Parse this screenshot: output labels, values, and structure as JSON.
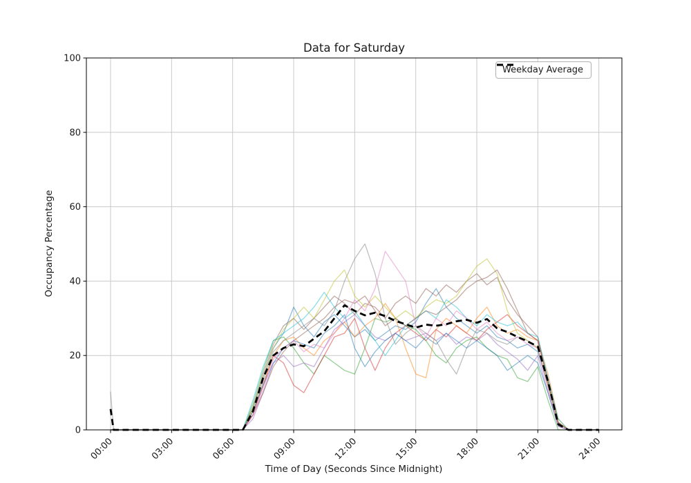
{
  "chart_data": {
    "type": "line",
    "title": "Data for Saturday",
    "xlabel": "Time of Day (Seconds Since Midnight)",
    "ylabel": "Occupancy Percentage",
    "legend_label": "Weekday Average",
    "legend_position": "upper right",
    "grid": true,
    "ylim": [
      0,
      100
    ],
    "y_ticks": [
      0,
      20,
      40,
      60,
      80,
      100
    ],
    "x_tick_hours": [
      0,
      3,
      6,
      9,
      12,
      15,
      18,
      21,
      24
    ],
    "x_tick_labels": [
      "00:00",
      "03:00",
      "06:00",
      "09:00",
      "12:00",
      "15:00",
      "18:00",
      "21:00",
      "24:00"
    ],
    "x_hours": [
      0,
      0.15,
      0.5,
      1,
      1.5,
      2,
      2.5,
      3,
      3.5,
      4,
      4.5,
      5,
      5.5,
      6,
      6.5,
      7,
      7.5,
      8,
      8.5,
      9,
      9.5,
      10,
      10.5,
      11,
      11.5,
      12,
      12.5,
      13,
      13.5,
      14,
      14.5,
      15,
      15.5,
      16,
      16.5,
      17,
      17.5,
      18,
      18.5,
      19,
      19.5,
      20,
      20.5,
      21,
      21.5,
      22,
      22.5,
      23,
      23.5,
      24
    ],
    "average_series": {
      "name": "Weekday Average",
      "color": "#000000",
      "dashed": true,
      "values": [
        5.6,
        0,
        0,
        0,
        0,
        0,
        0,
        0,
        0,
        0,
        0,
        0,
        0,
        0,
        0,
        5,
        14,
        20,
        22,
        23,
        22.5,
        24.5,
        26.5,
        30,
        33.5,
        32,
        30.8,
        31.5,
        30.6,
        29.3,
        28.4,
        27.5,
        28.3,
        28,
        28.4,
        29.2,
        29.6,
        28.8,
        29.8,
        27.3,
        26.3,
        25,
        23.8,
        22.4,
        13,
        1.5,
        0,
        0,
        0,
        0
      ]
    },
    "saturday_series": [
      {
        "color": "#1f77b4",
        "opacity": 0.5,
        "values": [
          0,
          0,
          0,
          0,
          0,
          0,
          0,
          0,
          0,
          0,
          0,
          0,
          0,
          0,
          0,
          6,
          14,
          22,
          26,
          33,
          28,
          25,
          29,
          31,
          28,
          25,
          27,
          24,
          26,
          28,
          27,
          29,
          34,
          38,
          33,
          30,
          28,
          26,
          28,
          25,
          24,
          22,
          23,
          21,
          12,
          2,
          0,
          0,
          0,
          0
        ]
      },
      {
        "color": "#ff7f0e",
        "opacity": 0.5,
        "values": [
          0,
          0,
          0,
          0,
          0,
          0,
          0,
          0,
          0,
          0,
          0,
          0,
          0,
          0,
          0,
          5,
          12,
          20,
          24,
          25,
          22,
          20,
          24,
          26,
          29,
          25,
          28,
          30,
          34,
          30,
          22,
          15,
          14,
          27,
          30,
          28,
          26,
          30,
          33,
          28,
          26,
          27,
          25,
          24,
          15,
          3,
          0,
          0,
          0,
          0
        ]
      },
      {
        "color": "#2ca02c",
        "opacity": 0.5,
        "values": [
          0,
          0,
          0,
          0,
          0,
          0,
          0,
          0,
          0,
          0,
          0,
          0,
          0,
          0,
          0,
          7,
          16,
          24,
          25,
          22,
          18,
          15,
          20,
          18,
          16,
          15,
          22,
          30,
          29,
          30,
          28,
          27,
          24,
          20,
          18,
          22,
          24,
          25,
          22,
          20,
          19,
          14,
          13,
          17,
          8,
          0,
          0,
          0,
          0,
          0
        ]
      },
      {
        "color": "#d62728",
        "opacity": 0.5,
        "values": [
          0,
          0,
          0,
          0,
          0,
          0,
          0,
          0,
          0,
          0,
          0,
          0,
          0,
          0,
          0,
          4,
          12,
          20,
          18,
          12,
          10,
          15,
          20,
          25,
          26,
          30,
          22,
          16,
          22,
          26,
          28,
          26,
          24,
          27,
          25,
          28,
          26,
          24,
          27,
          29,
          31,
          28,
          26,
          24,
          13,
          2,
          0,
          0,
          0,
          0
        ]
      },
      {
        "color": "#9467bd",
        "opacity": 0.5,
        "values": [
          0,
          0,
          0,
          0,
          0,
          0,
          0,
          0,
          0,
          0,
          0,
          0,
          0,
          0,
          0,
          3,
          10,
          18,
          20,
          17,
          18,
          17,
          22,
          27,
          29,
          31,
          28,
          25,
          24,
          26,
          24,
          25,
          26,
          24,
          26,
          23,
          25,
          24,
          26,
          23,
          21,
          19,
          16,
          20,
          10,
          1,
          0,
          0,
          0,
          0
        ]
      },
      {
        "color": "#8c564b",
        "opacity": 0.5,
        "values": [
          0,
          0,
          0,
          0,
          0,
          0,
          0,
          0,
          0,
          0,
          0,
          0,
          0,
          0,
          0,
          6,
          15,
          23,
          28,
          30,
          27,
          30,
          33,
          36,
          34,
          31,
          34,
          33,
          30,
          34,
          36,
          34,
          38,
          36,
          39,
          37,
          40,
          42,
          39,
          41,
          35,
          31,
          28,
          25,
          13,
          2,
          0,
          0,
          0,
          0
        ]
      },
      {
        "color": "#7f7f7f",
        "opacity": 0.5,
        "values": [
          10.3,
          0,
          0,
          0,
          0,
          0,
          0,
          0,
          0,
          0,
          0,
          0,
          0,
          0,
          0,
          5,
          13,
          21,
          24,
          26,
          28,
          30,
          28,
          32,
          40,
          46,
          50,
          42,
          30,
          23,
          26,
          28,
          26,
          24,
          19,
          15,
          22,
          27,
          26,
          24,
          23,
          25,
          24,
          22,
          12,
          2,
          0,
          0,
          0,
          0
        ]
      },
      {
        "color": "#bcbd22",
        "opacity": 0.5,
        "values": [
          0,
          0,
          0,
          0,
          0,
          0,
          0,
          0,
          0,
          0,
          0,
          0,
          0,
          0,
          0,
          6,
          14,
          22,
          27,
          30,
          33,
          30,
          35,
          40,
          43,
          36,
          33,
          36,
          33,
          30,
          32,
          30,
          33,
          35,
          34,
          36,
          40,
          44,
          46,
          42,
          32,
          26,
          24,
          22,
          12,
          2,
          0,
          0,
          0,
          0
        ]
      },
      {
        "color": "#17becf",
        "opacity": 0.5,
        "values": [
          0,
          0,
          0,
          0,
          0,
          0,
          0,
          0,
          0,
          0,
          0,
          0,
          0,
          0,
          0,
          8,
          17,
          24,
          26,
          28,
          30,
          33,
          37,
          33,
          30,
          32,
          28,
          24,
          20,
          24,
          28,
          30,
          32,
          30,
          35,
          33,
          30,
          28,
          31,
          29,
          28,
          29,
          26,
          25,
          14,
          3,
          0,
          0,
          0,
          0
        ]
      },
      {
        "color": "#1f77b4",
        "opacity": 0.5,
        "values": [
          0,
          0,
          0,
          0,
          0,
          0,
          0,
          0,
          0,
          0,
          0,
          0,
          0,
          0,
          0,
          5,
          12,
          18,
          22,
          24,
          23,
          22,
          26,
          28,
          31,
          22,
          17,
          21,
          24,
          26,
          24,
          22,
          25,
          23,
          26,
          24,
          22,
          24,
          22,
          20,
          16,
          18,
          20,
          18,
          10,
          1,
          0,
          0,
          0,
          0
        ]
      },
      {
        "color": "#8c564b",
        "opacity": 0.5,
        "values": [
          0,
          0,
          0,
          0,
          0,
          0,
          0,
          0,
          0,
          0,
          0,
          0,
          0,
          0,
          0,
          4,
          10,
          17,
          21,
          24,
          26,
          28,
          30,
          33,
          35,
          34,
          36,
          32,
          28,
          30,
          28,
          30,
          32,
          31,
          33,
          35,
          38,
          40,
          41,
          43,
          38,
          32,
          26,
          24,
          13,
          2,
          0,
          0,
          0,
          0
        ]
      },
      {
        "color": "#e377c2",
        "opacity": 0.5,
        "values": [
          0,
          0,
          0,
          0,
          0,
          0,
          0,
          0,
          0,
          0,
          0,
          0,
          0,
          0,
          0,
          4,
          11,
          19,
          22,
          24,
          21,
          23,
          22,
          26,
          30,
          35,
          32,
          38,
          48,
          44,
          40,
          28,
          25,
          30,
          28,
          32,
          30,
          27,
          29,
          26,
          24,
          25,
          23,
          22,
          11,
          1,
          0,
          0,
          0,
          0
        ]
      }
    ],
    "style": {
      "grid_color": "#c9c9c9",
      "spine_color": "#000000",
      "background": "#ffffff",
      "average_line_width": 2.8,
      "series_line_width": 1.3
    }
  }
}
